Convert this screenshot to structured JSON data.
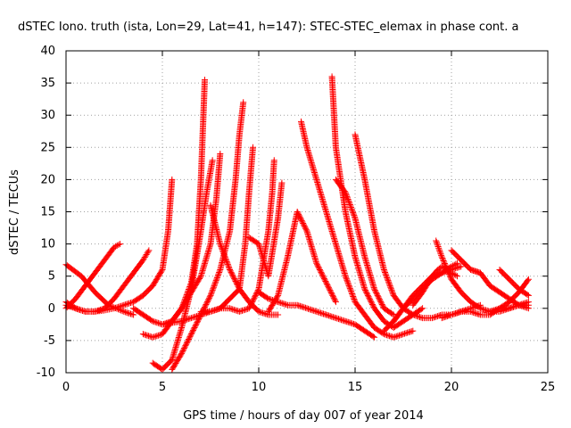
{
  "chart_data": {
    "type": "scatter",
    "title": "dSTEC Iono. truth (ista, Lon=29, Lat=41, h=147): STEC-STEC_elemax in phase cont. a",
    "xlabel": "GPS time / hours of day 007 of year 2014",
    "ylabel": "dSTEC  / TECUs",
    "xlim": [
      0,
      25
    ],
    "ylim": [
      -10,
      40
    ],
    "xticks": [
      0,
      5,
      10,
      15,
      20,
      25
    ],
    "yticks": [
      -10,
      -5,
      0,
      5,
      10,
      15,
      20,
      25,
      30,
      35,
      40
    ],
    "grid": true,
    "marker": "+",
    "color": "#ff0000",
    "series": [
      {
        "x": [
          0.0,
          0.5,
          1.0,
          1.5,
          2.0,
          2.5,
          2.8
        ],
        "y": [
          0.0,
          1.5,
          3.5,
          5.5,
          7.5,
          9.5,
          10.0
        ]
      },
      {
        "x": [
          0.0,
          0.5,
          1.0,
          1.5,
          2.0,
          2.5,
          3.0,
          3.5,
          4.0,
          4.3
        ],
        "y": [
          1.0,
          0.0,
          -0.5,
          -0.5,
          0.0,
          1.5,
          3.5,
          5.5,
          7.5,
          9.0
        ]
      },
      {
        "x": [
          0.0,
          0.8,
          1.5,
          2.2,
          3.0,
          3.5
        ],
        "y": [
          6.8,
          5.0,
          2.5,
          0.5,
          -0.5,
          -1.0
        ]
      },
      {
        "x": [
          0.0,
          0.5,
          1.0,
          1.5,
          2.0,
          2.5,
          3.0,
          3.5,
          4.0,
          4.5,
          5.0,
          5.3,
          5.5
        ],
        "y": [
          0.5,
          0.0,
          -0.5,
          -0.5,
          -0.3,
          0.0,
          0.5,
          1.0,
          2.0,
          3.5,
          6.0,
          12.0,
          20.0
        ]
      },
      {
        "x": [
          3.5,
          4.0,
          4.5,
          5.0,
          5.5,
          6.0,
          6.5,
          6.8,
          7.0,
          7.2
        ],
        "y": [
          0.0,
          -1.0,
          -2.0,
          -2.5,
          -2.0,
          0.0,
          4.0,
          10.0,
          20.0,
          35.5
        ]
      },
      {
        "x": [
          4.0,
          4.5,
          5.0,
          5.5,
          6.0,
          6.5,
          7.0,
          7.5,
          7.8,
          8.0
        ],
        "y": [
          -4.0,
          -4.5,
          -4.0,
          -2.0,
          0.0,
          2.5,
          5.0,
          10.0,
          17.0,
          24.0
        ]
      },
      {
        "x": [
          4.5,
          5.0,
          5.5,
          6.0,
          6.5,
          7.0,
          7.3,
          7.6
        ],
        "y": [
          -8.5,
          -9.5,
          -8.0,
          -3.0,
          3.0,
          12.0,
          18.0,
          23.0
        ]
      },
      {
        "x": [
          5.5,
          6.0,
          6.5,
          7.0,
          7.5,
          8.0,
          8.5,
          8.8,
          9.0,
          9.2
        ],
        "y": [
          -9.5,
          -7.0,
          -4.0,
          -1.0,
          2.0,
          6.0,
          12.0,
          20.0,
          27.0,
          32.0
        ]
      },
      {
        "x": [
          5.0,
          6.0,
          7.0,
          8.0,
          9.0,
          9.3,
          9.5,
          9.7
        ],
        "y": [
          -2.5,
          -2.0,
          -1.0,
          0.0,
          3.0,
          10.0,
          18.0,
          25.0
        ]
      },
      {
        "x": [
          7.0,
          7.5,
          8.0,
          8.5,
          9.0,
          9.5,
          10.0,
          10.5,
          10.7,
          10.8
        ],
        "y": [
          -0.5,
          -0.5,
          0.0,
          0.0,
          -0.5,
          0.0,
          3.0,
          12.0,
          18.0,
          23.0
        ]
      },
      {
        "x": [
          7.5,
          8.0,
          8.5,
          9.0,
          9.5,
          10.0,
          10.5,
          11.0
        ],
        "y": [
          16.0,
          10.0,
          6.0,
          3.0,
          1.0,
          -0.5,
          -1.0,
          -1.0
        ]
      },
      {
        "x": [
          9.5,
          10.0,
          10.5,
          11.0,
          11.2
        ],
        "y": [
          11.0,
          10.0,
          5.0,
          14.0,
          19.5
        ]
      },
      {
        "x": [
          10.0,
          10.5,
          11.0,
          11.5,
          12.0,
          12.5,
          13.0,
          13.5,
          14.0,
          14.5,
          15.0,
          15.5,
          16.0
        ],
        "y": [
          2.5,
          1.5,
          1.0,
          0.5,
          0.5,
          0.0,
          -0.5,
          -1.0,
          -1.5,
          -2.0,
          -2.5,
          -3.5,
          -4.5
        ]
      },
      {
        "x": [
          10.5,
          11.0,
          11.5,
          12.0,
          12.5,
          13.0,
          13.5,
          14.0
        ],
        "y": [
          -0.5,
          2.0,
          8.0,
          15.0,
          12.0,
          7.0,
          4.0,
          1.0
        ]
      },
      {
        "x": [
          12.2,
          12.5,
          13.0,
          13.5,
          14.0,
          14.5,
          15.0,
          15.5,
          16.0,
          16.5,
          17.0,
          17.5,
          18.0
        ],
        "y": [
          29.0,
          25.0,
          20.0,
          15.0,
          10.0,
          5.0,
          1.0,
          -1.0,
          -3.0,
          -4.0,
          -4.5,
          -4.0,
          -3.5
        ]
      },
      {
        "x": [
          13.8,
          14.0,
          14.5,
          15.0,
          15.5,
          16.0,
          16.5,
          17.0,
          17.5,
          18.0,
          18.5
        ],
        "y": [
          36.0,
          25.0,
          15.0,
          8.0,
          3.0,
          0.0,
          -2.0,
          -3.0,
          -2.0,
          -1.0,
          0.0
        ]
      },
      {
        "x": [
          14.0,
          14.5,
          15.0,
          15.5,
          16.0,
          16.5,
          17.0
        ],
        "y": [
          20.0,
          18.0,
          14.0,
          8.0,
          3.0,
          0.0,
          -1.0
        ]
      },
      {
        "x": [
          15.0,
          15.5,
          16.0,
          16.5,
          17.0,
          17.5,
          18.0,
          18.5,
          19.0,
          19.5,
          20.0,
          20.5,
          21.0,
          21.5
        ],
        "y": [
          27.0,
          20.0,
          12.0,
          6.0,
          2.0,
          0.0,
          -1.0,
          -1.5,
          -1.5,
          -1.0,
          -1.0,
          -0.5,
          0.0,
          0.5
        ]
      },
      {
        "x": [
          16.5,
          17.0,
          17.5,
          18.0,
          18.5,
          19.0,
          19.5,
          20.0,
          20.5
        ],
        "y": [
          -3.5,
          -2.0,
          0.0,
          2.0,
          3.5,
          5.0,
          5.5,
          6.0,
          6.5
        ]
      },
      {
        "x": [
          17.0,
          17.5,
          18.0,
          18.5,
          19.0,
          19.5,
          20.0,
          20.3
        ],
        "y": [
          -2.0,
          0.0,
          1.5,
          3.0,
          4.5,
          5.5,
          6.5,
          7.0
        ]
      },
      {
        "x": [
          18.0,
          18.5,
          19.0,
          19.3,
          19.5,
          19.8,
          20.0,
          20.3
        ],
        "y": [
          0.5,
          2.5,
          5.0,
          6.0,
          6.5,
          6.0,
          5.5,
          5.0
        ]
      },
      {
        "x": [
          19.2,
          19.5,
          20.0,
          20.5,
          21.0,
          21.5,
          22.0,
          22.5,
          23.0,
          23.5,
          24.0
        ],
        "y": [
          10.5,
          8.0,
          4.5,
          2.5,
          1.0,
          0.0,
          -0.5,
          -0.5,
          0.0,
          0.5,
          1.0
        ]
      },
      {
        "x": [
          19.5,
          20.0,
          20.5,
          21.0,
          21.5,
          22.0,
          22.5,
          23.0,
          23.5,
          24.0
        ],
        "y": [
          -1.5,
          -1.0,
          -0.5,
          -0.5,
          -1.0,
          -1.0,
          0.0,
          1.0,
          2.5,
          4.5
        ]
      },
      {
        "x": [
          20.0,
          20.5,
          21.0,
          21.5
        ],
        "y": [
          9.0,
          7.5,
          6.0,
          5.5
        ]
      },
      {
        "x": [
          21.0,
          21.5,
          22.0,
          22.5,
          23.0,
          23.5,
          24.0
        ],
        "y": [
          6.0,
          5.5,
          3.5,
          2.5,
          1.5,
          0.5,
          0.0
        ]
      },
      {
        "x": [
          22.5,
          23.0,
          23.5,
          24.0
        ],
        "y": [
          6.0,
          4.5,
          3.0,
          2.0
        ]
      },
      {
        "x": [
          22.0,
          22.5,
          23.0,
          23.5,
          24.0
        ],
        "y": [
          -0.5,
          0.0,
          0.0,
          0.5,
          0.5
        ]
      }
    ]
  }
}
